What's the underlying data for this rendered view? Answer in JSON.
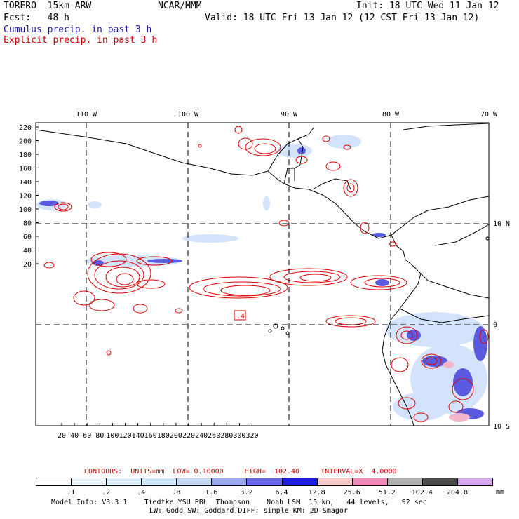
{
  "header": {
    "model": "TORERO  15km ARW",
    "org": "NCAR/MMM",
    "init": "Init: 18 UTC Wed 11 Jan 12",
    "fcst": "Fcst:   48 h",
    "valid": "Valid: 18 UTC Fri 13 Jan 12 (12 CST Fri 13 Jan 12)",
    "line_cumulus": "Cumulus precip. in past 3 h",
    "line_explicit": "Explicit precip. in past 3 h",
    "color_cumulus": "#1a1aa6",
    "color_explicit": "#cc0000"
  },
  "map": {
    "lon_labels": [
      "110 W",
      "100 W",
      "90 W",
      "80 W",
      "70 W"
    ],
    "lat_labels": [
      "10 N",
      "0",
      "10 S"
    ],
    "y_ticks": [
      "220",
      "200",
      "180",
      "160",
      "140",
      "120",
      "100",
      "80",
      "60",
      "40",
      "20"
    ],
    "x_ticks": [
      "20",
      "40",
      "60",
      "80",
      "100",
      "120",
      "140",
      "160",
      "180",
      "200",
      "220",
      "240",
      "260",
      "280",
      "300",
      "320"
    ],
    "box_label": ".4"
  },
  "contour_info": {
    "text": "CONTOURS:  UNITS=mm  LOW= 0.10000     HIGH=  102.40     INTERVAL=X  4.0000"
  },
  "colorbar": {
    "colors": [
      "#ffffff",
      "#eef7ff",
      "#dff0ff",
      "#cfe8ff",
      "#c4d8f4",
      "#9aa8ee",
      "#6a6ae6",
      "#1e1ee0",
      "#f6c8c8",
      "#f08ab8",
      "#b0b0b0",
      "#4a4a4a",
      "#d8a8ee"
    ],
    "labels": [
      ".1",
      ".2",
      ".4",
      ".8",
      "1.6",
      "3.2",
      "6.4",
      "12.8",
      "25.6",
      "51.2",
      "102.4",
      "204.8"
    ],
    "units": "mm"
  },
  "footer": {
    "line1": "Model Info: V3.3.1    Tiedtke YSU PBL  Thompson    Noah LSM  15 km,   44 levels,   92 sec",
    "line2": "LW: Godd SW: Goddard DIFF: simple KM: 2D Smagor"
  }
}
